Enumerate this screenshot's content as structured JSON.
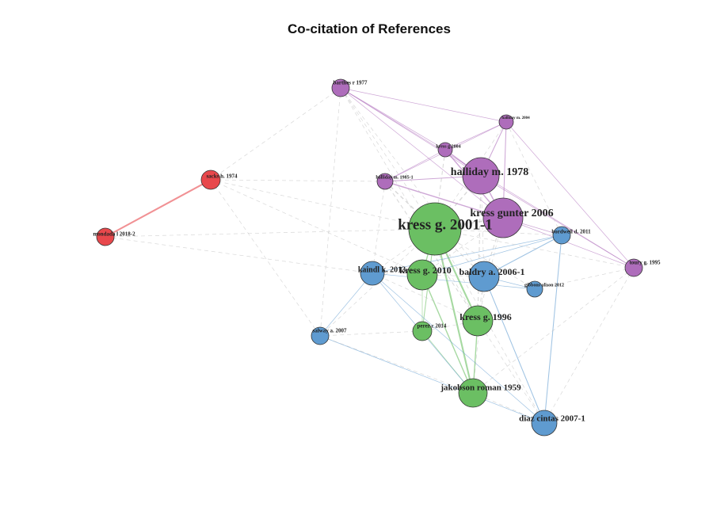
{
  "title": "Co-citation of References",
  "colors": {
    "purple": "#AE6DBB",
    "green": "#6BBF63",
    "blue": "#5F9BD0",
    "red": "#E8484C",
    "gray_edge": "#b8b8b8"
  },
  "nodes": [
    {
      "id": "barthes",
      "label": "barthes r 1977",
      "cluster": "purple"
    },
    {
      "id": "halliday2004",
      "label": "halliday m. 2004",
      "cluster": "purple"
    },
    {
      "id": "kress2004",
      "label": "kress g.2004",
      "cluster": "purple"
    },
    {
      "id": "halliday1985",
      "label": "halliday m. 1985-1",
      "cluster": "purple"
    },
    {
      "id": "halliday1978",
      "label": "halliday m. 1978",
      "cluster": "purple"
    },
    {
      "id": "kressgunter",
      "label": "kress gunter 2006",
      "cluster": "purple"
    },
    {
      "id": "toury",
      "label": "toury g. 1995",
      "cluster": "purple"
    },
    {
      "id": "sacks",
      "label": "sacks h. 1974",
      "cluster": "red"
    },
    {
      "id": "mondada",
      "label": "mondada l 2018-2",
      "cluster": "red"
    },
    {
      "id": "kress2001",
      "label": "kress g. 2001-1",
      "cluster": "green"
    },
    {
      "id": "kress2010",
      "label": "kress g. 2010",
      "cluster": "green"
    },
    {
      "id": "kress1996",
      "label": "kress g. 1996",
      "cluster": "green"
    },
    {
      "id": "perez",
      "label": "perez c 2014",
      "cluster": "green"
    },
    {
      "id": "jakobson",
      "label": "jakobson roman 1959",
      "cluster": "green"
    },
    {
      "id": "kaindl",
      "label": "kaindl k. 2013",
      "cluster": "blue"
    },
    {
      "id": "baldry",
      "label": "baldry a. 2006-1",
      "cluster": "blue"
    },
    {
      "id": "bordwell",
      "label": "bordwell d. 2011",
      "cluster": "blue"
    },
    {
      "id": "gibbons",
      "label": "gibbons alison 2012",
      "cluster": "blue"
    },
    {
      "id": "salway",
      "label": "salway a. 2007",
      "cluster": "blue"
    },
    {
      "id": "diaz",
      "label": "diaz cintas 2007-1",
      "cluster": "blue"
    }
  ],
  "edges": [
    [
      "sacks",
      "mondada",
      "red",
      3
    ],
    [
      "barthes",
      "halliday2004",
      "purple",
      1
    ],
    [
      "barthes",
      "halliday1978",
      "purple",
      1
    ],
    [
      "barthes",
      "kressgunter",
      "purple",
      1
    ],
    [
      "barthes",
      "kress2004",
      "purple",
      1
    ],
    [
      "barthes",
      "toury",
      "purple",
      1
    ],
    [
      "halliday2004",
      "halliday1978",
      "purple",
      1.5
    ],
    [
      "halliday2004",
      "kressgunter",
      "purple",
      1.5
    ],
    [
      "halliday2004",
      "kress2004",
      "purple",
      1
    ],
    [
      "halliday2004",
      "halliday1985",
      "purple",
      1
    ],
    [
      "halliday2004",
      "toury",
      "purple",
      1
    ],
    [
      "kress2004",
      "halliday1978",
      "purple",
      2
    ],
    [
      "kress2004",
      "kressgunter",
      "purple",
      2
    ],
    [
      "kress2004",
      "halliday1985",
      "purple",
      1
    ],
    [
      "halliday1985",
      "halliday1978",
      "purple",
      1.5
    ],
    [
      "halliday1985",
      "kressgunter",
      "purple",
      2
    ],
    [
      "halliday1978",
      "kressgunter",
      "purple",
      2
    ],
    [
      "kressgunter",
      "toury",
      "purple",
      1
    ],
    [
      "kressgunter",
      "bordwell",
      "purple",
      1
    ],
    [
      "halliday1978",
      "toury",
      "purple",
      1
    ],
    [
      "kress2001",
      "kress2010",
      "green",
      2
    ],
    [
      "kress2001",
      "kress1996",
      "green",
      3
    ],
    [
      "kress2001",
      "perez",
      "green",
      1.5
    ],
    [
      "kress2001",
      "jakobson",
      "green",
      3
    ],
    [
      "kress2010",
      "jakobson",
      "green",
      2
    ],
    [
      "kress2010",
      "perez",
      "green",
      1
    ],
    [
      "kress1996",
      "jakobson",
      "green",
      2
    ],
    [
      "perez",
      "jakobson",
      "green",
      1
    ],
    [
      "kaindl",
      "jakobson",
      "blue",
      1
    ],
    [
      "kaindl",
      "diaz",
      "blue",
      1
    ],
    [
      "kaindl",
      "gibbons",
      "blue",
      1
    ],
    [
      "baldry",
      "bordwell",
      "blue",
      1.5
    ],
    [
      "baldry",
      "diaz",
      "blue",
      1.5
    ],
    [
      "baldry",
      "gibbons",
      "blue",
      1
    ],
    [
      "bordwell",
      "diaz",
      "blue",
      1.5
    ],
    [
      "bordwell",
      "kaindl",
      "blue",
      1
    ],
    [
      "bordwell",
      "kress2010",
      "blue",
      1
    ],
    [
      "salway",
      "diaz",
      "blue",
      1
    ],
    [
      "salway",
      "kaindl",
      "blue",
      1
    ],
    [
      "barthes",
      "sacks",
      "gray",
      1
    ],
    [
      "barthes",
      "kress2001",
      "gray",
      1
    ],
    [
      "barthes",
      "kress1996",
      "gray",
      1
    ],
    [
      "barthes",
      "salway",
      "gray",
      1
    ],
    [
      "sacks",
      "kress2001",
      "gray",
      1
    ],
    [
      "sacks",
      "halliday1985",
      "gray",
      1
    ],
    [
      "sacks",
      "salway",
      "gray",
      1
    ],
    [
      "sacks",
      "kress2010",
      "gray",
      1
    ],
    [
      "mondada",
      "kaindl",
      "gray",
      1
    ],
    [
      "mondada",
      "kress2001",
      "gray",
      1
    ],
    [
      "halliday1985",
      "kress2001",
      "gray",
      2
    ],
    [
      "halliday1985",
      "kress1996",
      "gray",
      1.5
    ],
    [
      "halliday1978",
      "kress2001",
      "gray",
      2
    ],
    [
      "halliday1978",
      "kress1996",
      "gray",
      1.5
    ],
    [
      "kressgunter",
      "kress2001",
      "gray",
      2
    ],
    [
      "kress2004",
      "kress2001",
      "gray",
      1.5
    ],
    [
      "halliday2004",
      "kress2001",
      "gray",
      1
    ],
    [
      "kress2001",
      "baldry",
      "gray",
      1.5
    ],
    [
      "kress2001",
      "kaindl",
      "gray",
      1
    ],
    [
      "kress2001",
      "bordwell",
      "gray",
      1
    ],
    [
      "kress2001",
      "salway",
      "gray",
      1
    ],
    [
      "kress2001",
      "gibbons",
      "gray",
      1
    ],
    [
      "kress2001",
      "toury",
      "gray",
      1
    ],
    [
      "kress2001",
      "diaz",
      "gray",
      1
    ],
    [
      "kressgunter",
      "baldry",
      "gray",
      1.5
    ],
    [
      "kressgunter",
      "kress1996",
      "gray",
      1
    ],
    [
      "kressgunter",
      "kress2010",
      "gray",
      1
    ],
    [
      "halliday1978",
      "baldry",
      "gray",
      1
    ],
    [
      "halliday2004",
      "bordwell",
      "gray",
      1
    ],
    [
      "baldry",
      "kress1996",
      "gray",
      1
    ],
    [
      "baldry",
      "kress2010",
      "gray",
      1
    ],
    [
      "baldry",
      "jakobson",
      "gray",
      1
    ],
    [
      "toury",
      "diaz",
      "gray",
      1
    ],
    [
      "toury",
      "jakobson",
      "gray",
      1
    ],
    [
      "toury",
      "gibbons",
      "gray",
      1
    ],
    [
      "perez",
      "salway",
      "gray",
      1
    ],
    [
      "jakobson",
      "diaz",
      "gray",
      1
    ],
    [
      "kress1996",
      "diaz",
      "gray",
      1
    ],
    [
      "kress1996",
      "perez",
      "gray",
      1
    ],
    [
      "salway",
      "jakobson",
      "gray",
      1
    ],
    [
      "kaindl",
      "kress1996",
      "gray",
      1
    ],
    [
      "halliday1985",
      "kaindl",
      "gray",
      1
    ],
    [
      "barthes",
      "baldry",
      "gray",
      1
    ]
  ]
}
